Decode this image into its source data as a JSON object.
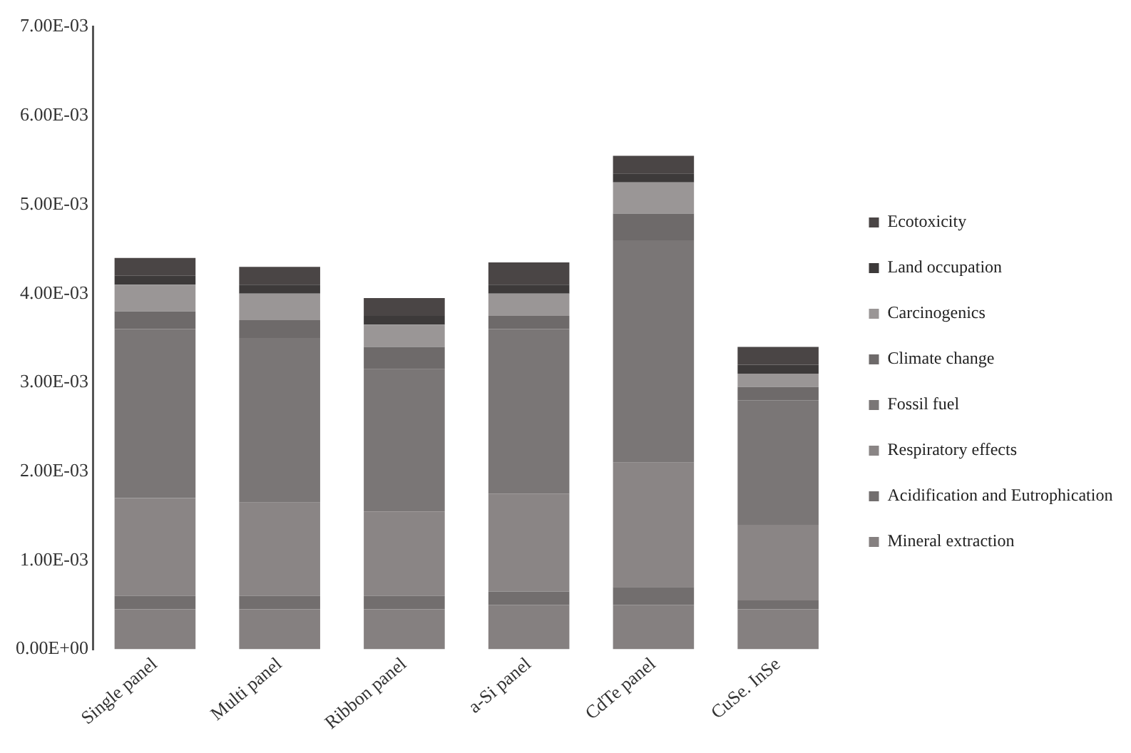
{
  "chart_data": {
    "type": "bar",
    "stacked": true,
    "categories": [
      "Single panel",
      "Multi panel",
      "Ribbon panel",
      "a-Si panel",
      "CdTe panel",
      "CuSe. InSe"
    ],
    "series": [
      {
        "name": "Mineral extraction",
        "color": "#858080",
        "values": [
          0.00045,
          0.00045,
          0.00045,
          0.0005,
          0.0005,
          0.00045
        ]
      },
      {
        "name": "Acidification and Eutrophication",
        "color": "#726e6e",
        "values": [
          0.00015,
          0.00015,
          0.00015,
          0.00015,
          0.0002,
          0.0001
        ]
      },
      {
        "name": "Respiratory effects",
        "color": "#8a8585",
        "values": [
          0.0011,
          0.00105,
          0.00095,
          0.0011,
          0.0014,
          0.00085
        ]
      },
      {
        "name": "Fossil fuel",
        "color": "#7a7676",
        "values": [
          0.0019,
          0.00185,
          0.0016,
          0.00185,
          0.0025,
          0.0014
        ]
      },
      {
        "name": "Climate change",
        "color": "#6e6a6a",
        "values": [
          0.0002,
          0.0002,
          0.00025,
          0.00015,
          0.0003,
          0.00015
        ]
      },
      {
        "name": "Carcinogenics",
        "color": "#9a9696",
        "values": [
          0.0003,
          0.0003,
          0.00025,
          0.00025,
          0.00035,
          0.00015
        ]
      },
      {
        "name": "Land occupation",
        "color": "#3d3a3a",
        "values": [
          0.0001,
          0.0001,
          0.0001,
          0.0001,
          0.0001,
          0.0001
        ]
      },
      {
        "name": "Ecotoxicity",
        "color": "#4a4545",
        "values": [
          0.0002,
          0.0002,
          0.0002,
          0.00025,
          0.0002,
          0.0002
        ]
      }
    ],
    "ylim": [
      0,
      0.007
    ],
    "yticks": [
      {
        "value": 0,
        "label": "0.00E+00"
      },
      {
        "value": 0.001,
        "label": "1.00E-03"
      },
      {
        "value": 0.002,
        "label": "2.00E-03"
      },
      {
        "value": 0.003,
        "label": "3.00E-03"
      },
      {
        "value": 0.004,
        "label": "4.00E-03"
      },
      {
        "value": 0.005,
        "label": "5.00E-03"
      },
      {
        "value": 0.006,
        "label": "6.00E-03"
      },
      {
        "value": 0.007,
        "label": "7.00E-03"
      }
    ],
    "grid": false,
    "legend": "right"
  }
}
